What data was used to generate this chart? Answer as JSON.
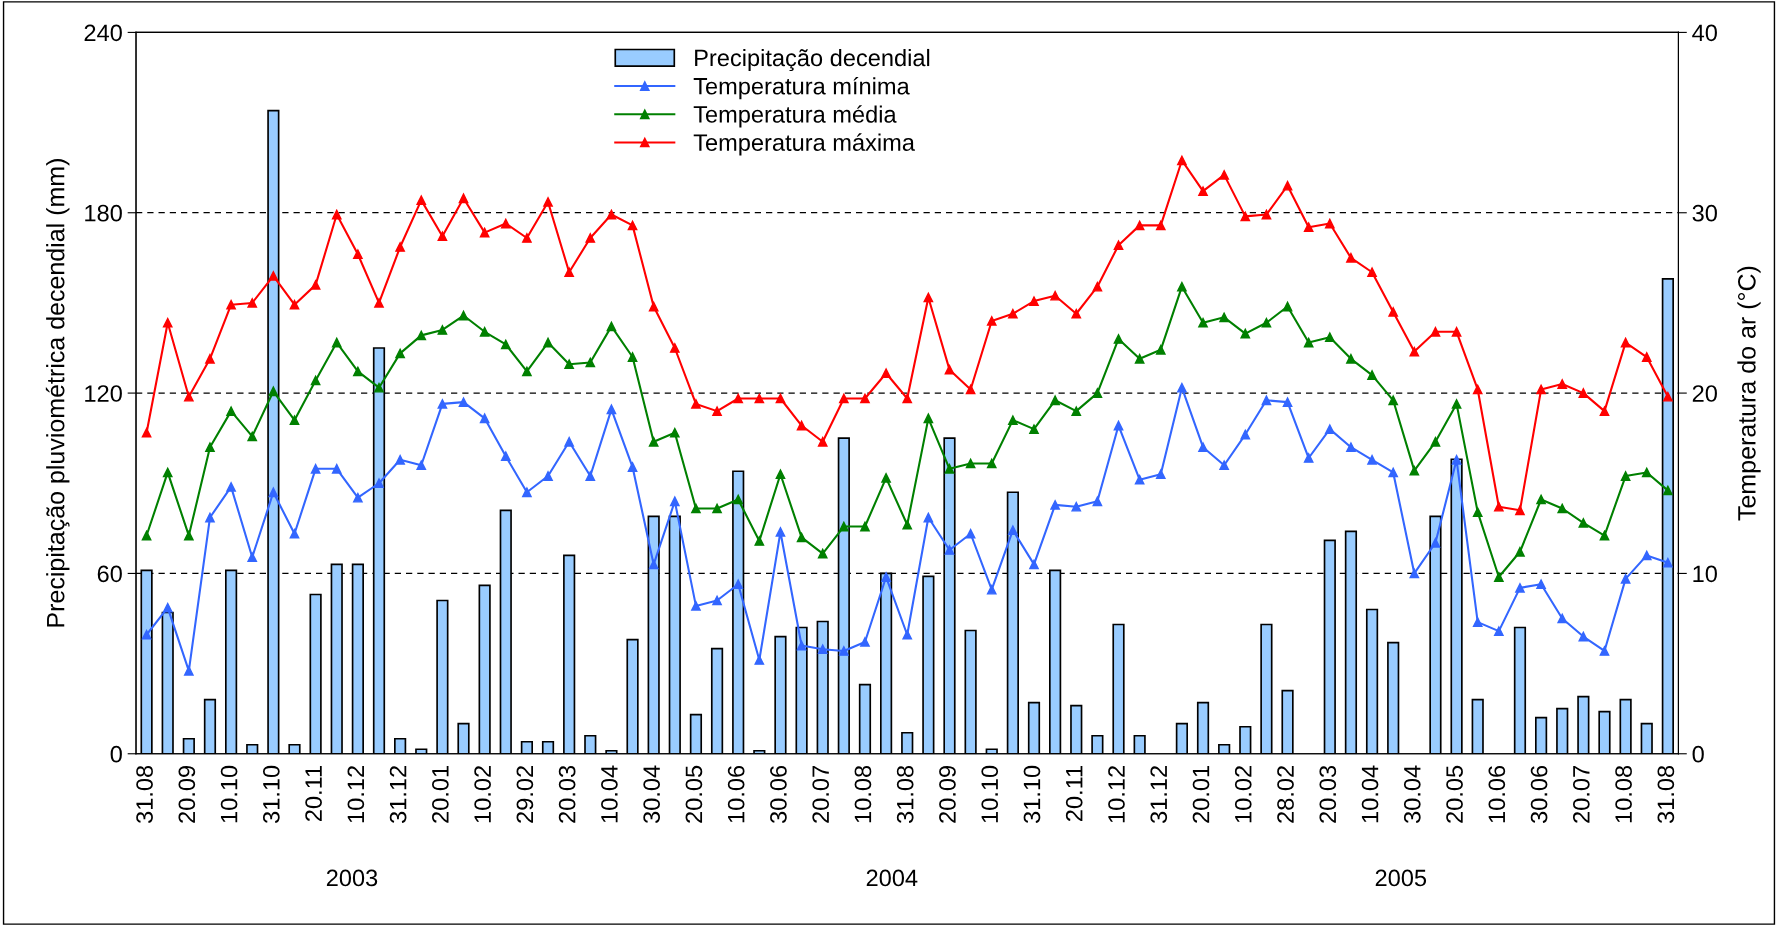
{
  "chart_data": {
    "type": "bar",
    "ylabel": "Precipitação pluviométrica decendial (mm)",
    "y2label": "Temperatura do ar (°C)",
    "categories": [
      "31.08",
      null,
      "20.09",
      null,
      "10.10",
      null,
      "31.10",
      null,
      "20.11",
      null,
      "10.12",
      null,
      "31.12",
      null,
      "20.01",
      null,
      "10.02",
      null,
      "29.02",
      null,
      "20.03",
      null,
      "10.04",
      null,
      "30.04",
      null,
      "20.05",
      null,
      "10.06",
      null,
      "30.06",
      null,
      "20.07",
      null,
      "10.08",
      null,
      "31.08",
      null,
      "20.09",
      null,
      "10.10",
      null,
      "31.10",
      null,
      "20.11",
      null,
      "10.12",
      null,
      "31.12",
      null,
      "20.01",
      null,
      "10.02",
      null,
      "28.02",
      null,
      "20.03",
      null,
      "10.04",
      null,
      "30.04",
      null,
      "20.05",
      null,
      "10.06",
      null,
      "30.06",
      null,
      "20.07",
      null,
      "10.08",
      null,
      "31.08"
    ],
    "series": [
      {
        "name": "Precipitação decendial",
        "color": "#99ccff",
        "values": [
          61,
          47,
          5,
          18,
          61,
          3,
          214,
          3,
          53,
          63,
          63,
          135,
          5,
          1.5,
          51,
          10,
          56,
          81,
          4,
          4,
          66,
          6,
          1,
          38,
          79,
          79,
          13,
          35,
          94,
          1,
          39,
          42,
          44,
          105,
          23,
          60,
          7,
          59,
          105,
          41,
          1.5,
          87,
          17,
          61,
          16,
          6,
          43,
          6,
          0,
          10,
          17,
          3,
          9,
          43,
          21,
          0,
          71,
          74,
          48,
          37,
          0,
          79,
          98,
          18,
          0,
          42,
          12,
          15,
          19,
          14,
          18,
          10,
          158
        ]
      },
      {
        "name": "Temperatura mínima",
        "type": "line",
        "axis": "y2",
        "color": "#3366ff",
        "values": [
          6.6,
          8.1,
          4.6,
          13.1,
          14.8,
          10.9,
          14.5,
          12.2,
          15.8,
          15.8,
          14.2,
          15.0,
          16.3,
          16.0,
          19.4,
          19.5,
          18.6,
          16.5,
          14.5,
          15.4,
          17.3,
          15.4,
          19.1,
          15.9,
          10.5,
          14.0,
          8.2,
          8.5,
          9.4,
          5.2,
          12.3,
          6.0,
          5.8,
          5.7,
          6.2,
          9.8,
          6.6,
          13.1,
          11.3,
          12.2,
          9.1,
          12.4,
          10.5,
          13.8,
          13.7,
          14.0,
          18.2,
          15.2,
          15.5,
          20.3,
          17.0,
          16.0,
          17.7,
          19.6,
          19.5,
          16.4,
          18.0,
          17.0,
          16.3,
          15.6,
          10.0,
          11.7,
          16.3,
          7.3,
          6.8,
          9.2,
          9.4,
          7.5,
          6.5,
          5.7,
          9.7,
          11.0,
          10.6
        ]
      },
      {
        "name": "Temperatura média",
        "type": "line",
        "axis": "y2",
        "color": "#008000",
        "values": [
          12.1,
          15.6,
          12.1,
          17.0,
          19.0,
          17.6,
          20.1,
          18.5,
          20.7,
          22.8,
          21.2,
          20.3,
          22.2,
          23.2,
          23.5,
          24.3,
          23.4,
          22.7,
          21.2,
          22.8,
          21.6,
          21.7,
          23.7,
          22.0,
          17.3,
          17.8,
          13.6,
          13.6,
          14.1,
          11.8,
          15.5,
          12.0,
          11.1,
          12.6,
          12.6,
          15.3,
          12.7,
          18.6,
          15.8,
          16.1,
          16.1,
          18.5,
          18.0,
          19.6,
          19.0,
          20.0,
          23.0,
          21.9,
          22.4,
          25.9,
          23.9,
          24.2,
          23.3,
          23.9,
          24.8,
          22.8,
          23.1,
          21.9,
          21.0,
          19.6,
          15.7,
          17.3,
          19.4,
          13.4,
          9.8,
          11.2,
          14.1,
          13.6,
          12.8,
          12.1,
          15.4,
          15.6,
          14.6
        ]
      },
      {
        "name": "Temperatura máxima",
        "type": "line",
        "axis": "y2",
        "color": "#ff0000",
        "values": [
          17.8,
          23.9,
          19.8,
          21.9,
          24.9,
          25.0,
          26.5,
          24.9,
          26.0,
          29.9,
          27.7,
          25.0,
          28.1,
          30.7,
          28.7,
          30.8,
          28.9,
          29.4,
          28.6,
          30.6,
          26.7,
          28.6,
          29.9,
          29.3,
          24.8,
          22.5,
          19.4,
          19.0,
          19.7,
          19.7,
          19.7,
          18.2,
          17.3,
          19.7,
          19.7,
          21.1,
          19.7,
          25.3,
          21.3,
          20.2,
          24.0,
          24.4,
          25.1,
          25.4,
          24.4,
          25.9,
          28.2,
          29.3,
          29.3,
          32.9,
          31.2,
          32.1,
          29.8,
          29.9,
          31.5,
          29.2,
          29.4,
          27.5,
          26.7,
          24.5,
          22.3,
          23.4,
          23.4,
          20.2,
          13.7,
          13.5,
          20.2,
          20.5,
          20.0,
          19.0,
          22.8,
          22.0,
          19.8
        ]
      }
    ],
    "ylim": [
      0,
      240
    ],
    "yticks": [
      0,
      60,
      120,
      180,
      240
    ],
    "y2lim": [
      0,
      40
    ],
    "y2ticks": [
      0,
      10,
      20,
      30,
      40
    ],
    "grid": "y",
    "legend": "top",
    "marker": "triangle",
    "line_style": "solid",
    "annotations": [
      "2003",
      "2004",
      "2005"
    ]
  }
}
